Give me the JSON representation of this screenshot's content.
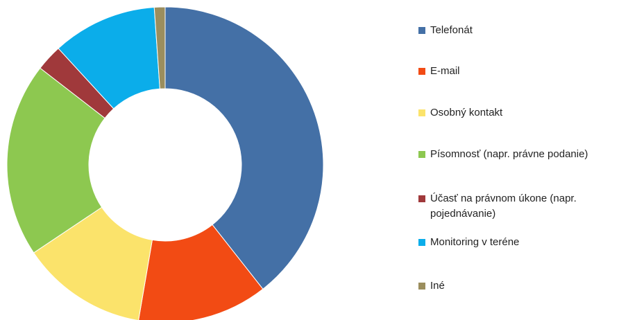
{
  "chart_data": {
    "type": "donut",
    "categories": [
      "Telefonát",
      "E-mail",
      "Osobný kontakt",
      "Písomnosť (napr. právne podanie)",
      "Účasť na právnom úkone (napr. pojednávanie)",
      "Monitoring v teréne",
      "Iné"
    ],
    "values": [
      39.4,
      13.3,
      12.9,
      19.9,
      2.7,
      10.7,
      1.1
    ],
    "colors": [
      "#4470a6",
      "#f24b14",
      "#fbe36b",
      "#8dc850",
      "#a0393b",
      "#0badea",
      "#9b8e5d"
    ],
    "legend": "right"
  }
}
